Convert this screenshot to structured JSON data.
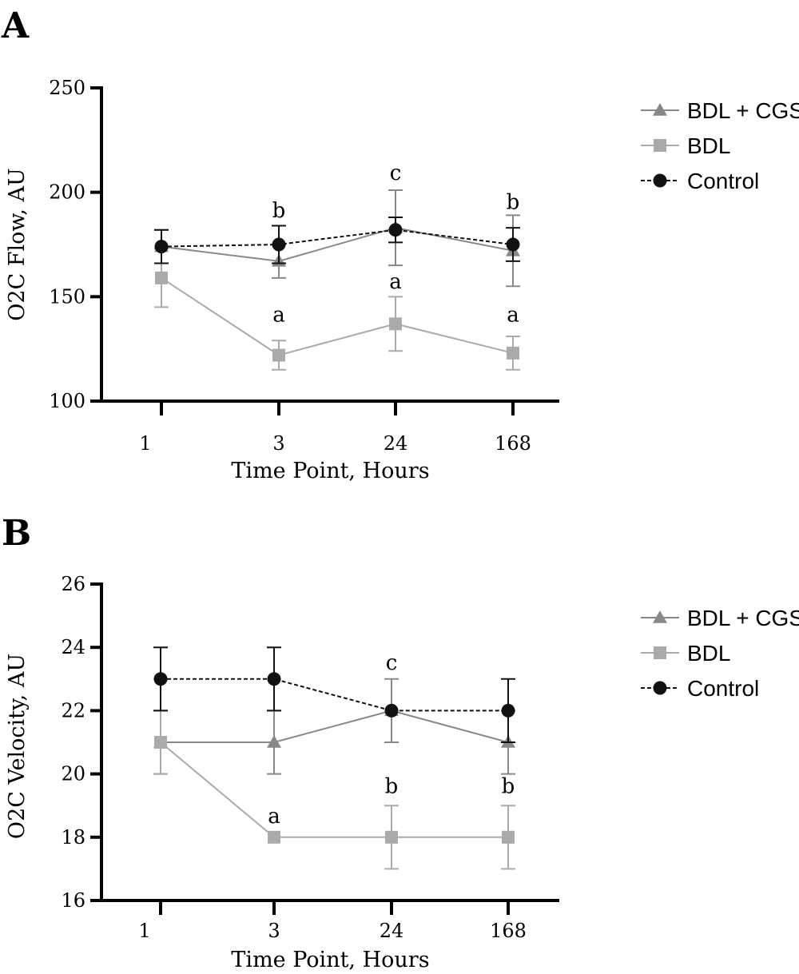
{
  "chart_data": [
    {
      "panel": "A",
      "type": "line",
      "title": "",
      "categories": [
        "1",
        "3",
        "24",
        "168"
      ],
      "xlabel": "Time Point, Hours",
      "ylabel": "O2C Flow, AU",
      "ylim": [
        100,
        250
      ],
      "yticks": [
        100,
        150,
        200,
        250
      ],
      "grid": false,
      "legend_position": "right",
      "series": [
        {
          "name": "BDL + CGS",
          "marker": "triangle",
          "color": "#888888",
          "dash": "solid",
          "values": [
            174,
            167,
            183,
            172
          ],
          "errors": [
            8,
            8,
            18,
            17
          ]
        },
        {
          "name": "BDL",
          "marker": "square",
          "color": "#aaaaaa",
          "dash": "solid",
          "values": [
            159,
            122,
            137,
            123
          ],
          "errors": [
            14,
            7,
            13,
            8
          ]
        },
        {
          "name": "Control",
          "marker": "circle",
          "color": "#111111",
          "dash": "dashed",
          "values": [
            174,
            175,
            182,
            175
          ],
          "errors": [
            8,
            9,
            6,
            8
          ]
        }
      ],
      "annotations": [
        {
          "text": "b",
          "category": "3",
          "y": 188
        },
        {
          "text": "c",
          "category": "24",
          "y": 206
        },
        {
          "text": "b",
          "category": "168",
          "y": 192
        },
        {
          "text": "a",
          "category": "3",
          "y": 138
        },
        {
          "text": "a",
          "category": "24",
          "y": 154
        },
        {
          "text": "a",
          "category": "168",
          "y": 138
        }
      ]
    },
    {
      "panel": "B",
      "type": "line",
      "title": "",
      "categories": [
        "1",
        "3",
        "24",
        "168"
      ],
      "xlabel": "Time Point, Hours",
      "ylabel": "O2C Velocity, AU",
      "ylim": [
        16,
        26
      ],
      "yticks": [
        16,
        18,
        20,
        22,
        24,
        26
      ],
      "grid": false,
      "legend_position": "right",
      "series": [
        {
          "name": "BDL + CGS",
          "marker": "triangle",
          "color": "#888888",
          "dash": "solid",
          "values": [
            21,
            21,
            22,
            21
          ],
          "errors": [
            1,
            1,
            1,
            1
          ]
        },
        {
          "name": "BDL",
          "marker": "square",
          "color": "#aaaaaa",
          "dash": "solid",
          "values": [
            21,
            18,
            18,
            18
          ],
          "errors": [
            1,
            0,
            1,
            1
          ]
        },
        {
          "name": "Control",
          "marker": "circle",
          "color": "#111111",
          "dash": "dashed",
          "values": [
            23,
            23,
            22,
            22
          ],
          "errors": [
            1,
            1,
            0,
            1
          ]
        }
      ],
      "annotations": [
        {
          "text": "c",
          "category": "24",
          "y": 23.3
        },
        {
          "text": "a",
          "category": "3",
          "y": 18.45
        },
        {
          "text": "b",
          "category": "24",
          "y": 19.4
        },
        {
          "text": "b",
          "category": "168",
          "y": 19.4
        }
      ]
    }
  ]
}
